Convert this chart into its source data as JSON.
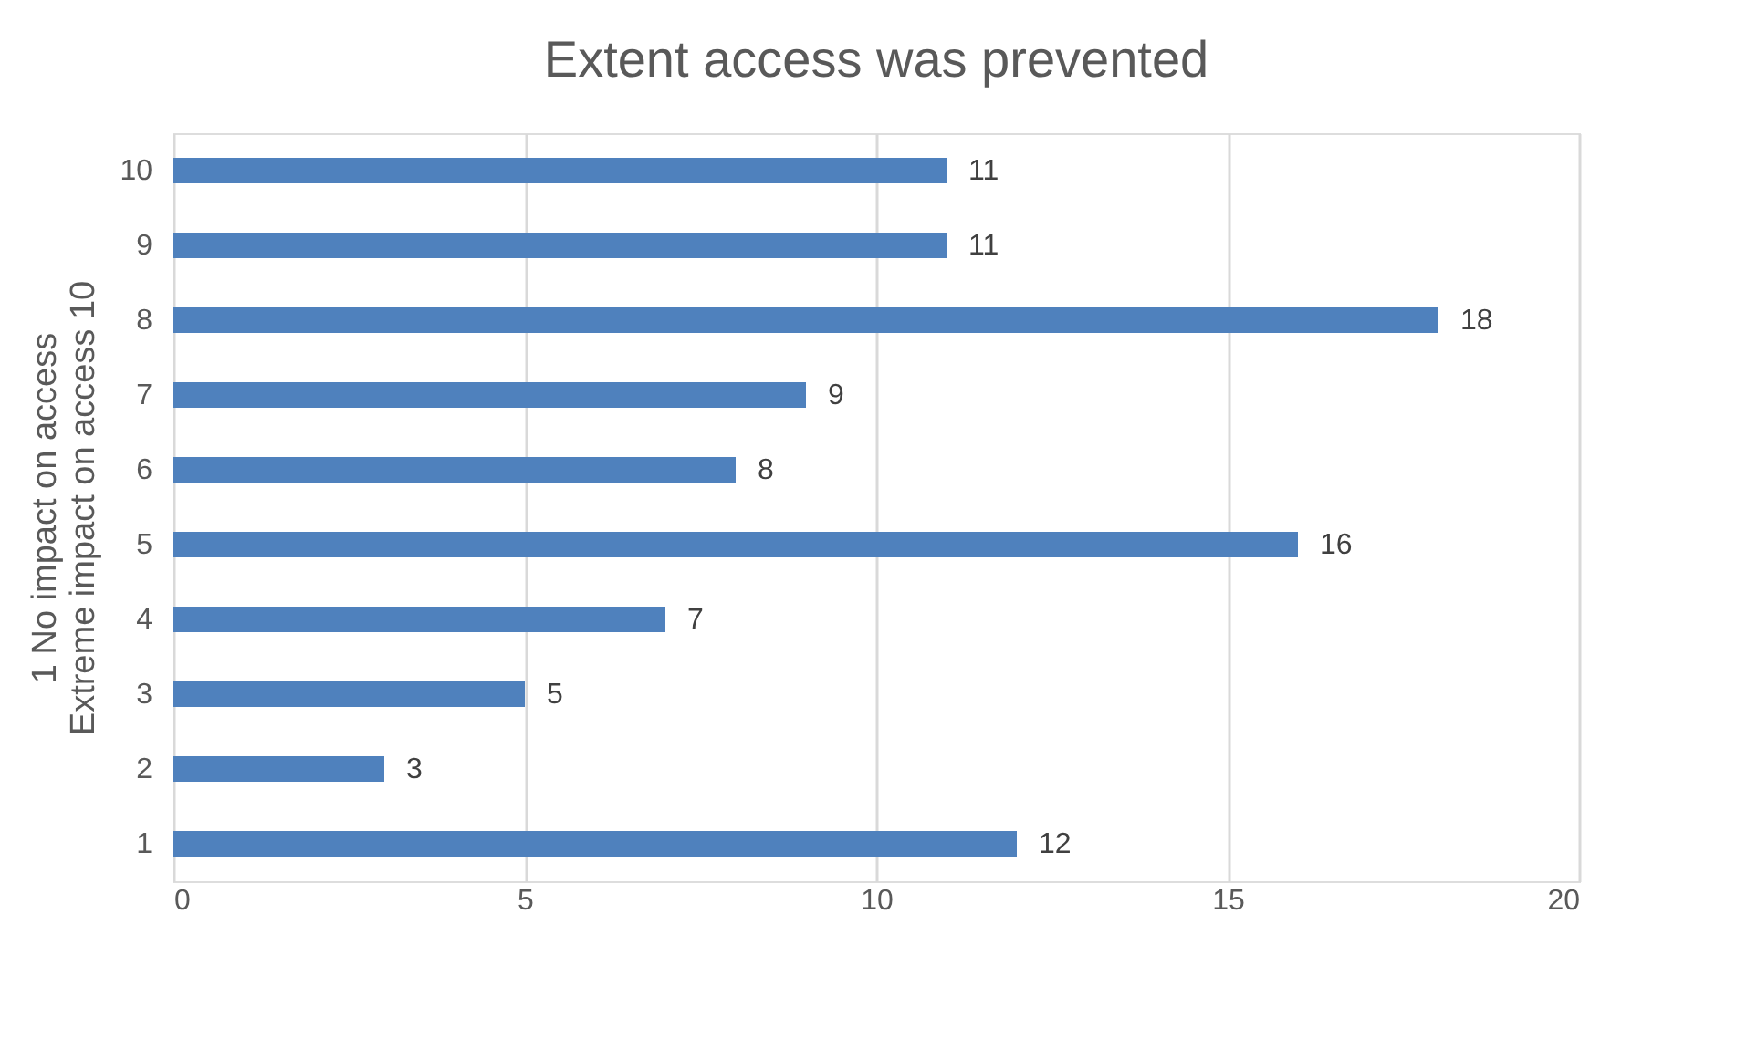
{
  "chart_data": {
    "type": "bar",
    "orientation": "horizontal",
    "title": "Extent access was prevented",
    "ylabel": "1 No impact on access\nExtreme impact on access 10",
    "categories": [
      "10",
      "9",
      "8",
      "7",
      "6",
      "5",
      "4",
      "3",
      "2",
      "1"
    ],
    "values": [
      11,
      11,
      18,
      9,
      8,
      16,
      7,
      5,
      3,
      12
    ],
    "color": "#4f81bd",
    "xlim": [
      0,
      20
    ],
    "xticks": [
      0,
      5,
      10,
      15,
      20
    ],
    "grid": "x",
    "data_labels": true
  }
}
